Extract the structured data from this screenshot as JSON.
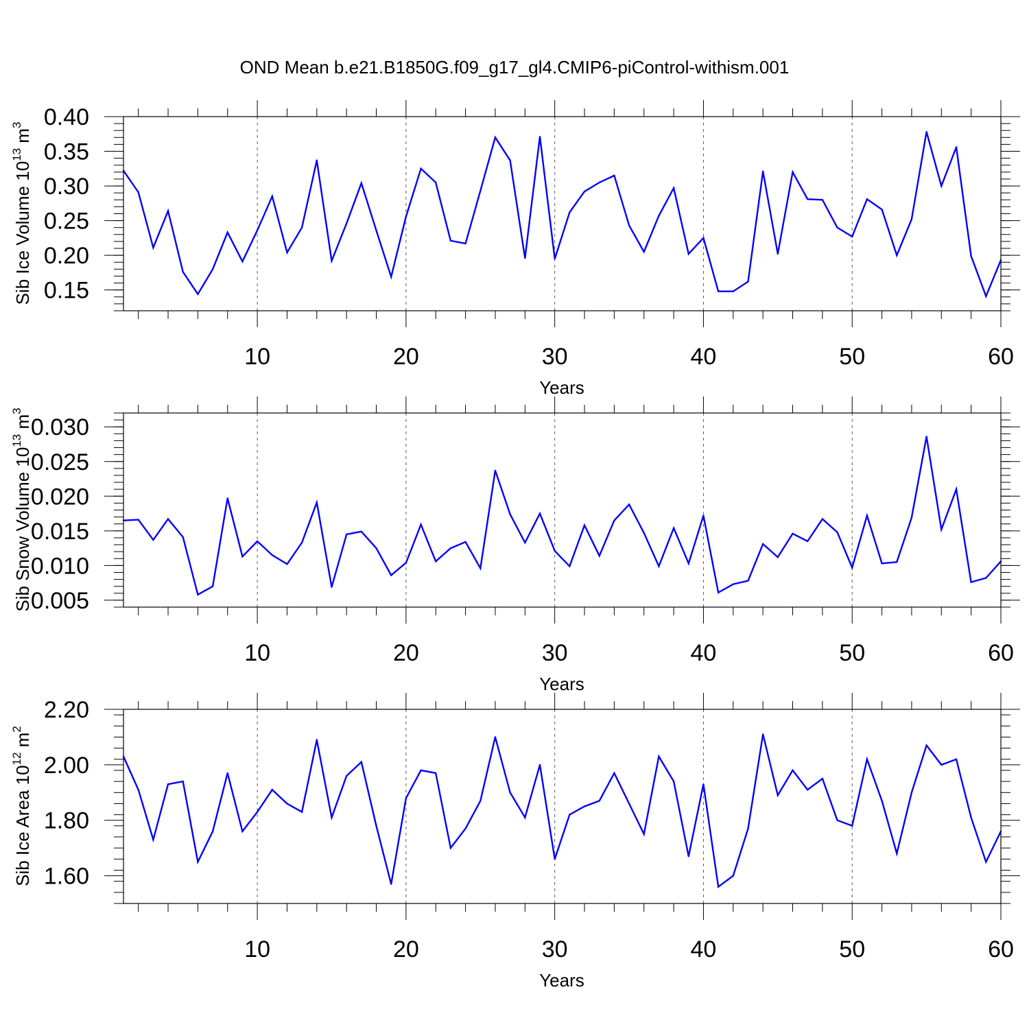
{
  "figure_title": "OND Mean b.e21.B1850G.f09_g17_gl4.CMIP6-piControl-withism.001",
  "chart_data": [
    {
      "type": "line",
      "title": "OND Mean b.e21.B1850G.f09_g17_gl4.CMIP6-piControl-withism.001",
      "ylabel": {
        "text": "Sib Ice Volume 10",
        "sup1": "13",
        "mid": " m",
        "sup2": "3"
      },
      "xlabel": "Years",
      "xlim": [
        1,
        60
      ],
      "ylim": [
        0.12,
        0.4
      ],
      "xticks": [
        10,
        20,
        30,
        40,
        50,
        60
      ],
      "yticks": [
        0.15,
        0.2,
        0.25,
        0.3,
        0.35,
        0.4
      ],
      "ytick_labels": [
        "0.15",
        "0.20",
        "0.25",
        "0.30",
        "0.35",
        "0.40"
      ],
      "grid": "x-dashed",
      "line_color": "#0000ff",
      "x": [
        1,
        2,
        3,
        4,
        5,
        6,
        7,
        8,
        9,
        10,
        11,
        12,
        13,
        14,
        15,
        16,
        17,
        18,
        19,
        20,
        21,
        22,
        23,
        24,
        25,
        26,
        27,
        28,
        29,
        30,
        31,
        32,
        33,
        34,
        35,
        36,
        37,
        38,
        39,
        40,
        41,
        42,
        43,
        44,
        45,
        46,
        47,
        48,
        49,
        50,
        51,
        52,
        53,
        54,
        55,
        56,
        57,
        58,
        59,
        60
      ],
      "values": [
        0.322,
        0.291,
        0.211,
        0.264,
        0.176,
        0.144,
        0.18,
        0.233,
        0.191,
        0.236,
        0.285,
        0.204,
        0.24,
        0.337,
        0.192,
        0.246,
        0.304,
        0.236,
        0.169,
        0.256,
        0.325,
        0.305,
        0.221,
        0.217,
        0.293,
        0.37,
        0.337,
        0.196,
        0.371,
        0.195,
        0.262,
        0.292,
        0.305,
        0.315,
        0.243,
        0.205,
        0.257,
        0.297,
        0.202,
        0.225,
        0.148,
        0.148,
        0.162,
        0.321,
        0.202,
        0.32,
        0.281,
        0.28,
        0.24,
        0.227,
        0.281,
        0.266,
        0.2,
        0.252,
        0.378,
        0.3,
        0.356,
        0.199,
        0.141,
        0.193
      ]
    },
    {
      "type": "line",
      "ylabel": {
        "text": "Sib Snow Volume 10",
        "sup1": "13",
        "mid": " m",
        "sup2": "3"
      },
      "xlabel": "Years",
      "xlim": [
        1,
        60
      ],
      "ylim": [
        0.004,
        0.032
      ],
      "xticks": [
        10,
        20,
        30,
        40,
        50,
        60
      ],
      "yticks": [
        0.005,
        0.01,
        0.015,
        0.02,
        0.025,
        0.03
      ],
      "ytick_labels": [
        "0.005",
        "0.010",
        "0.015",
        "0.020",
        "0.025",
        "0.030"
      ],
      "grid": "x-dashed",
      "line_color": "#0000ff",
      "x": [
        1,
        2,
        3,
        4,
        5,
        6,
        7,
        8,
        9,
        10,
        11,
        12,
        13,
        14,
        15,
        16,
        17,
        18,
        19,
        20,
        21,
        22,
        23,
        24,
        25,
        26,
        27,
        28,
        29,
        30,
        31,
        32,
        33,
        34,
        35,
        36,
        37,
        38,
        39,
        40,
        41,
        42,
        43,
        44,
        45,
        46,
        47,
        48,
        49,
        50,
        51,
        52,
        53,
        54,
        55,
        56,
        57,
        58,
        59,
        60
      ],
      "values": [
        0.0165,
        0.0166,
        0.0137,
        0.0167,
        0.0141,
        0.0058,
        0.007,
        0.0197,
        0.0113,
        0.0135,
        0.0115,
        0.0102,
        0.0133,
        0.0191,
        0.0069,
        0.0145,
        0.0149,
        0.0125,
        0.0086,
        0.0104,
        0.0159,
        0.0106,
        0.0125,
        0.0134,
        0.0096,
        0.0237,
        0.0174,
        0.0133,
        0.0175,
        0.0121,
        0.0099,
        0.0158,
        0.0114,
        0.0165,
        0.0188,
        0.0147,
        0.0099,
        0.0154,
        0.0103,
        0.0172,
        0.0061,
        0.0073,
        0.0078,
        0.0131,
        0.0112,
        0.0146,
        0.0135,
        0.0167,
        0.0148,
        0.0097,
        0.0172,
        0.0103,
        0.0105,
        0.0169,
        0.0286,
        0.0152,
        0.021,
        0.0076,
        0.0082,
        0.0106
      ]
    },
    {
      "type": "line",
      "ylabel": {
        "text": "Sib Ice Area 10",
        "sup1": "12",
        "mid": " m",
        "sup2": "2"
      },
      "xlabel": "Years",
      "xlim": [
        1,
        60
      ],
      "ylim": [
        1.5,
        2.2
      ],
      "xticks": [
        10,
        20,
        30,
        40,
        50,
        60
      ],
      "yticks": [
        1.6,
        1.8,
        2.0,
        2.2
      ],
      "ytick_labels": [
        "1.60",
        "1.80",
        "2.00",
        "2.20"
      ],
      "grid": "x-dashed",
      "line_color": "#0000ff",
      "x": [
        1,
        2,
        3,
        4,
        5,
        6,
        7,
        8,
        9,
        10,
        11,
        12,
        13,
        14,
        15,
        16,
        17,
        18,
        19,
        20,
        21,
        22,
        23,
        24,
        25,
        26,
        27,
        28,
        29,
        30,
        31,
        32,
        33,
        34,
        35,
        36,
        37,
        38,
        39,
        40,
        41,
        42,
        43,
        44,
        45,
        46,
        47,
        48,
        49,
        50,
        51,
        52,
        53,
        54,
        55,
        56,
        57,
        58,
        59,
        60
      ],
      "values": [
        2.03,
        1.91,
        1.73,
        1.93,
        1.94,
        1.65,
        1.76,
        1.97,
        1.76,
        1.83,
        1.91,
        1.86,
        1.83,
        2.09,
        1.81,
        1.96,
        2.01,
        1.78,
        1.57,
        1.88,
        1.98,
        1.97,
        1.7,
        1.77,
        1.87,
        2.1,
        1.9,
        1.81,
        2.0,
        1.66,
        1.82,
        1.85,
        1.87,
        1.97,
        1.86,
        1.75,
        2.03,
        1.94,
        1.67,
        1.93,
        1.56,
        1.6,
        1.77,
        2.11,
        1.89,
        1.98,
        1.91,
        1.95,
        1.8,
        1.78,
        2.02,
        1.87,
        1.68,
        1.9,
        2.07,
        2.0,
        2.02,
        1.81,
        1.65,
        1.76
      ]
    }
  ]
}
